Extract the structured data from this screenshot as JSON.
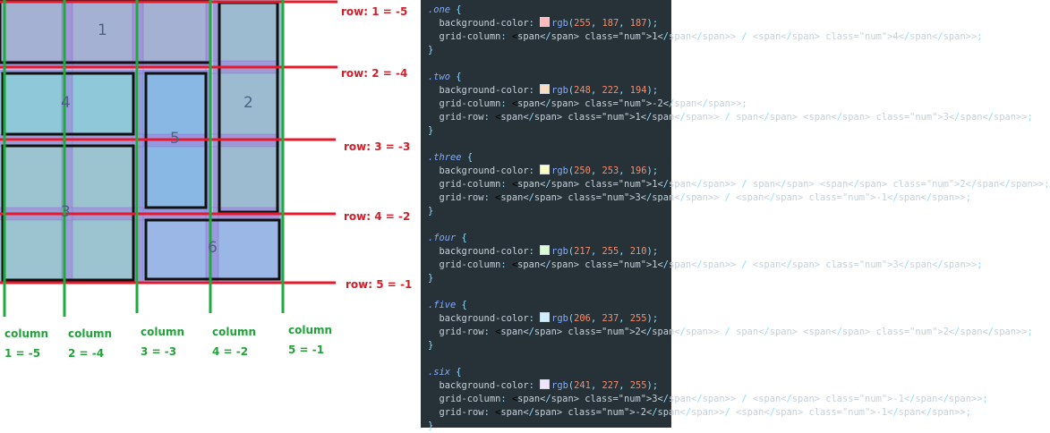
{
  "diagram": {
    "items": [
      {
        "name": "one",
        "label": "1",
        "color": "#a4b1d2"
      },
      {
        "name": "two",
        "label": "2",
        "color": "#9cbbd0"
      },
      {
        "name": "three",
        "label": "3",
        "color": "#9cc4d0"
      },
      {
        "name": "four",
        "label": "4",
        "color": "#8fc8d8"
      },
      {
        "name": "five",
        "label": "5",
        "color": "#8ab8e4"
      },
      {
        "name": "six",
        "label": "6",
        "color": "#9bb7e6"
      }
    ],
    "row_labels": [
      "row: 1 = -5",
      "row: 2 = -4",
      "row: 3 = -3",
      "row: 4 = -2",
      "row: 5 = -1"
    ],
    "column_labels": [
      {
        "line1": "column",
        "line2": "1 = -5"
      },
      {
        "line1": "column",
        "line2": "2 = -4"
      },
      {
        "line1": "column",
        "line2": "3 = -3"
      },
      {
        "line1": "column",
        "line2": "4 = -2"
      },
      {
        "line1": "column",
        "line2": "5 = -1"
      }
    ],
    "colors": {
      "row_line": "#e8192c",
      "column_line": "#1eaa3c",
      "gap_overlay": "#9f7fdc"
    }
  },
  "code": {
    "blocks": [
      {
        "selector": ".one",
        "color_value": "rgb(255, 187, 187)",
        "swatch": "#ffbbbb",
        "declarations": [
          {
            "prop": "grid-column",
            "value": "1 / 4"
          }
        ]
      },
      {
        "selector": ".two",
        "color_value": "rgb(248, 222, 194)",
        "swatch": "#f8dec2",
        "declarations": [
          {
            "prop": "grid-column",
            "value": "-2"
          },
          {
            "prop": "grid-row",
            "value": "1 / span 3"
          }
        ]
      },
      {
        "selector": ".three",
        "color_value": "rgb(250, 253, 196)",
        "swatch": "#fafdc4",
        "declarations": [
          {
            "prop": "grid-column",
            "value": "1 / span 2"
          },
          {
            "prop": "grid-row",
            "value": "3 / -1"
          }
        ]
      },
      {
        "selector": ".four",
        "color_value": "rgb(217, 255, 210)",
        "swatch": "#d9ffd2",
        "declarations": [
          {
            "prop": "grid-column",
            "value": "1 / 3"
          }
        ]
      },
      {
        "selector": ".five",
        "color_value": "rgb(206, 237, 255)",
        "swatch": "#ceedff",
        "declarations": [
          {
            "prop": "grid-row",
            "value": "2 / span 2"
          }
        ]
      },
      {
        "selector": ".six",
        "color_value": "rgb(241, 227, 255)",
        "swatch": "#f1e3ff",
        "declarations": [
          {
            "prop": "grid-column",
            "value": "3 / -1"
          },
          {
            "prop": "grid-row",
            "value": "-2/ -1"
          }
        ]
      }
    ]
  }
}
